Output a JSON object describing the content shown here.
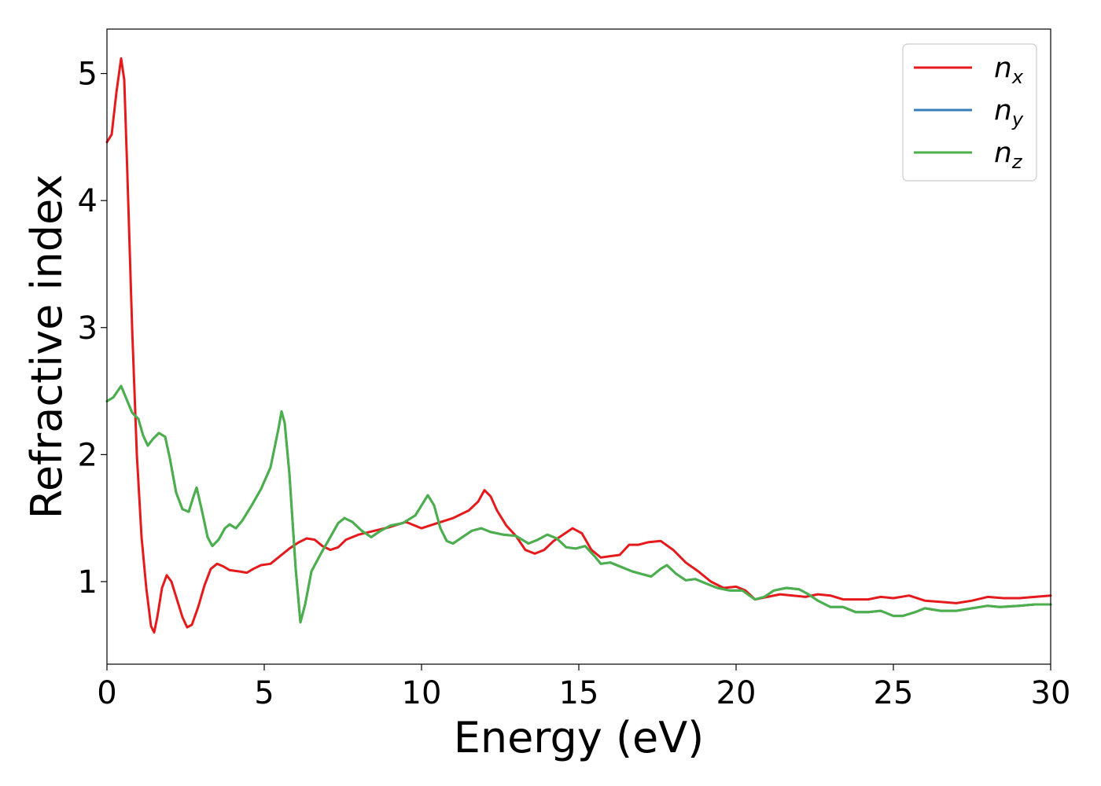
{
  "chart_data": {
    "type": "line",
    "title": "",
    "xlabel": "Energy (eV)",
    "ylabel": "Refractive index",
    "xlim": [
      0,
      30
    ],
    "ylim": [
      0.35,
      5.35
    ],
    "xticks": [
      "0",
      "5",
      "10",
      "15",
      "20",
      "25",
      "30"
    ],
    "yticks": [
      "1",
      "2",
      "3",
      "4",
      "5"
    ],
    "grid": false,
    "legend_position": "top-right",
    "series": [
      {
        "name": "n_x",
        "legend_main": "n",
        "legend_sub": "x",
        "color": "#e41a1c",
        "points": [
          [
            0,
            4.46
          ],
          [
            0.15,
            4.52
          ],
          [
            0.3,
            4.85
          ],
          [
            0.45,
            5.12
          ],
          [
            0.55,
            4.95
          ],
          [
            0.65,
            4.2
          ],
          [
            0.8,
            3.0
          ],
          [
            0.95,
            2.0
          ],
          [
            1.1,
            1.35
          ],
          [
            1.25,
            0.95
          ],
          [
            1.4,
            0.65
          ],
          [
            1.5,
            0.6
          ],
          [
            1.6,
            0.72
          ],
          [
            1.75,
            0.95
          ],
          [
            1.9,
            1.05
          ],
          [
            2.05,
            1.0
          ],
          [
            2.2,
            0.88
          ],
          [
            2.4,
            0.72
          ],
          [
            2.55,
            0.64
          ],
          [
            2.7,
            0.66
          ],
          [
            2.9,
            0.8
          ],
          [
            3.1,
            0.97
          ],
          [
            3.3,
            1.1
          ],
          [
            3.5,
            1.14
          ],
          [
            3.7,
            1.12
          ],
          [
            3.9,
            1.09
          ],
          [
            4.2,
            1.08
          ],
          [
            4.45,
            1.07
          ],
          [
            4.65,
            1.1
          ],
          [
            4.9,
            1.13
          ],
          [
            5.2,
            1.14
          ],
          [
            5.5,
            1.2
          ],
          [
            5.8,
            1.26
          ],
          [
            6.1,
            1.31
          ],
          [
            6.35,
            1.34
          ],
          [
            6.6,
            1.33
          ],
          [
            6.85,
            1.28
          ],
          [
            7.1,
            1.25
          ],
          [
            7.35,
            1.27
          ],
          [
            7.6,
            1.33
          ],
          [
            8.0,
            1.37
          ],
          [
            8.5,
            1.4
          ],
          [
            9.0,
            1.43
          ],
          [
            9.5,
            1.47
          ],
          [
            10.0,
            1.42
          ],
          [
            10.5,
            1.46
          ],
          [
            11.0,
            1.5
          ],
          [
            11.5,
            1.56
          ],
          [
            11.8,
            1.63
          ],
          [
            12.0,
            1.72
          ],
          [
            12.2,
            1.67
          ],
          [
            12.4,
            1.56
          ],
          [
            12.7,
            1.44
          ],
          [
            13.0,
            1.36
          ],
          [
            13.3,
            1.25
          ],
          [
            13.6,
            1.22
          ],
          [
            13.9,
            1.25
          ],
          [
            14.2,
            1.32
          ],
          [
            14.5,
            1.37
          ],
          [
            14.8,
            1.42
          ],
          [
            15.1,
            1.38
          ],
          [
            15.4,
            1.25
          ],
          [
            15.7,
            1.19
          ],
          [
            16.0,
            1.2
          ],
          [
            16.3,
            1.21
          ],
          [
            16.6,
            1.29
          ],
          [
            16.9,
            1.29
          ],
          [
            17.2,
            1.31
          ],
          [
            17.6,
            1.32
          ],
          [
            18.0,
            1.25
          ],
          [
            18.4,
            1.15
          ],
          [
            18.8,
            1.08
          ],
          [
            19.2,
            1.0
          ],
          [
            19.6,
            0.95
          ],
          [
            20.0,
            0.96
          ],
          [
            20.3,
            0.93
          ],
          [
            20.6,
            0.86
          ],
          [
            21.0,
            0.88
          ],
          [
            21.4,
            0.9
          ],
          [
            21.8,
            0.89
          ],
          [
            22.2,
            0.88
          ],
          [
            22.6,
            0.9
          ],
          [
            23.0,
            0.89
          ],
          [
            23.4,
            0.86
          ],
          [
            23.8,
            0.86
          ],
          [
            24.2,
            0.86
          ],
          [
            24.6,
            0.88
          ],
          [
            25.0,
            0.87
          ],
          [
            25.5,
            0.89
          ],
          [
            26.0,
            0.85
          ],
          [
            26.5,
            0.84
          ],
          [
            27.0,
            0.83
          ],
          [
            27.5,
            0.85
          ],
          [
            28.0,
            0.88
          ],
          [
            28.5,
            0.87
          ],
          [
            29.0,
            0.87
          ],
          [
            29.5,
            0.88
          ],
          [
            30.0,
            0.89
          ]
        ]
      },
      {
        "name": "n_y",
        "legend_main": "n",
        "legend_sub": "y",
        "color": "#377eb8",
        "points": [
          [
            0,
            2.42
          ],
          [
            0.2,
            2.45
          ],
          [
            0.45,
            2.54
          ],
          [
            0.6,
            2.45
          ],
          [
            0.8,
            2.33
          ],
          [
            1.0,
            2.28
          ],
          [
            1.15,
            2.15
          ],
          [
            1.3,
            2.07
          ],
          [
            1.45,
            2.12
          ],
          [
            1.65,
            2.17
          ],
          [
            1.85,
            2.14
          ],
          [
            2.0,
            1.97
          ],
          [
            2.2,
            1.7
          ],
          [
            2.4,
            1.57
          ],
          [
            2.6,
            1.55
          ],
          [
            2.75,
            1.67
          ],
          [
            2.85,
            1.74
          ],
          [
            3.0,
            1.58
          ],
          [
            3.2,
            1.35
          ],
          [
            3.35,
            1.28
          ],
          [
            3.55,
            1.33
          ],
          [
            3.75,
            1.42
          ],
          [
            3.9,
            1.45
          ],
          [
            4.1,
            1.42
          ],
          [
            4.3,
            1.48
          ],
          [
            4.6,
            1.6
          ],
          [
            4.9,
            1.73
          ],
          [
            5.2,
            1.9
          ],
          [
            5.45,
            2.2
          ],
          [
            5.55,
            2.34
          ],
          [
            5.65,
            2.25
          ],
          [
            5.8,
            1.85
          ],
          [
            6.0,
            1.1
          ],
          [
            6.15,
            0.68
          ],
          [
            6.3,
            0.82
          ],
          [
            6.5,
            1.08
          ],
          [
            6.8,
            1.22
          ],
          [
            7.1,
            1.35
          ],
          [
            7.35,
            1.46
          ],
          [
            7.55,
            1.5
          ],
          [
            7.8,
            1.47
          ],
          [
            8.1,
            1.4
          ],
          [
            8.4,
            1.35
          ],
          [
            8.7,
            1.4
          ],
          [
            9.0,
            1.44
          ],
          [
            9.4,
            1.46
          ],
          [
            9.8,
            1.52
          ],
          [
            10.0,
            1.6
          ],
          [
            10.2,
            1.68
          ],
          [
            10.4,
            1.6
          ],
          [
            10.6,
            1.42
          ],
          [
            10.8,
            1.32
          ],
          [
            11.0,
            1.3
          ],
          [
            11.3,
            1.35
          ],
          [
            11.6,
            1.4
          ],
          [
            11.9,
            1.42
          ],
          [
            12.2,
            1.39
          ],
          [
            12.6,
            1.37
          ],
          [
            13.0,
            1.36
          ],
          [
            13.4,
            1.3
          ],
          [
            13.7,
            1.33
          ],
          [
            14.0,
            1.37
          ],
          [
            14.3,
            1.34
          ],
          [
            14.6,
            1.27
          ],
          [
            14.9,
            1.26
          ],
          [
            15.2,
            1.28
          ],
          [
            15.5,
            1.2
          ],
          [
            15.7,
            1.14
          ],
          [
            16.0,
            1.15
          ],
          [
            16.4,
            1.11
          ],
          [
            16.7,
            1.08
          ],
          [
            17.0,
            1.06
          ],
          [
            17.3,
            1.04
          ],
          [
            17.6,
            1.1
          ],
          [
            17.8,
            1.13
          ],
          [
            18.1,
            1.06
          ],
          [
            18.4,
            1.01
          ],
          [
            18.7,
            1.02
          ],
          [
            19.0,
            0.99
          ],
          [
            19.4,
            0.95
          ],
          [
            19.8,
            0.93
          ],
          [
            20.2,
            0.93
          ],
          [
            20.6,
            0.86
          ],
          [
            20.9,
            0.88
          ],
          [
            21.2,
            0.93
          ],
          [
            21.6,
            0.95
          ],
          [
            22.0,
            0.94
          ],
          [
            22.3,
            0.9
          ],
          [
            22.6,
            0.85
          ],
          [
            23.0,
            0.8
          ],
          [
            23.4,
            0.8
          ],
          [
            23.8,
            0.76
          ],
          [
            24.2,
            0.76
          ],
          [
            24.6,
            0.77
          ],
          [
            25.0,
            0.73
          ],
          [
            25.3,
            0.73
          ],
          [
            25.7,
            0.76
          ],
          [
            26.0,
            0.79
          ],
          [
            26.5,
            0.77
          ],
          [
            27.0,
            0.77
          ],
          [
            27.5,
            0.79
          ],
          [
            28.0,
            0.81
          ],
          [
            28.4,
            0.8
          ],
          [
            29.0,
            0.81
          ],
          [
            29.5,
            0.82
          ],
          [
            30.0,
            0.82
          ]
        ]
      },
      {
        "name": "n_z",
        "legend_main": "n",
        "legend_sub": "z",
        "color": "#4daf4a",
        "same_as": "n_y"
      }
    ]
  }
}
